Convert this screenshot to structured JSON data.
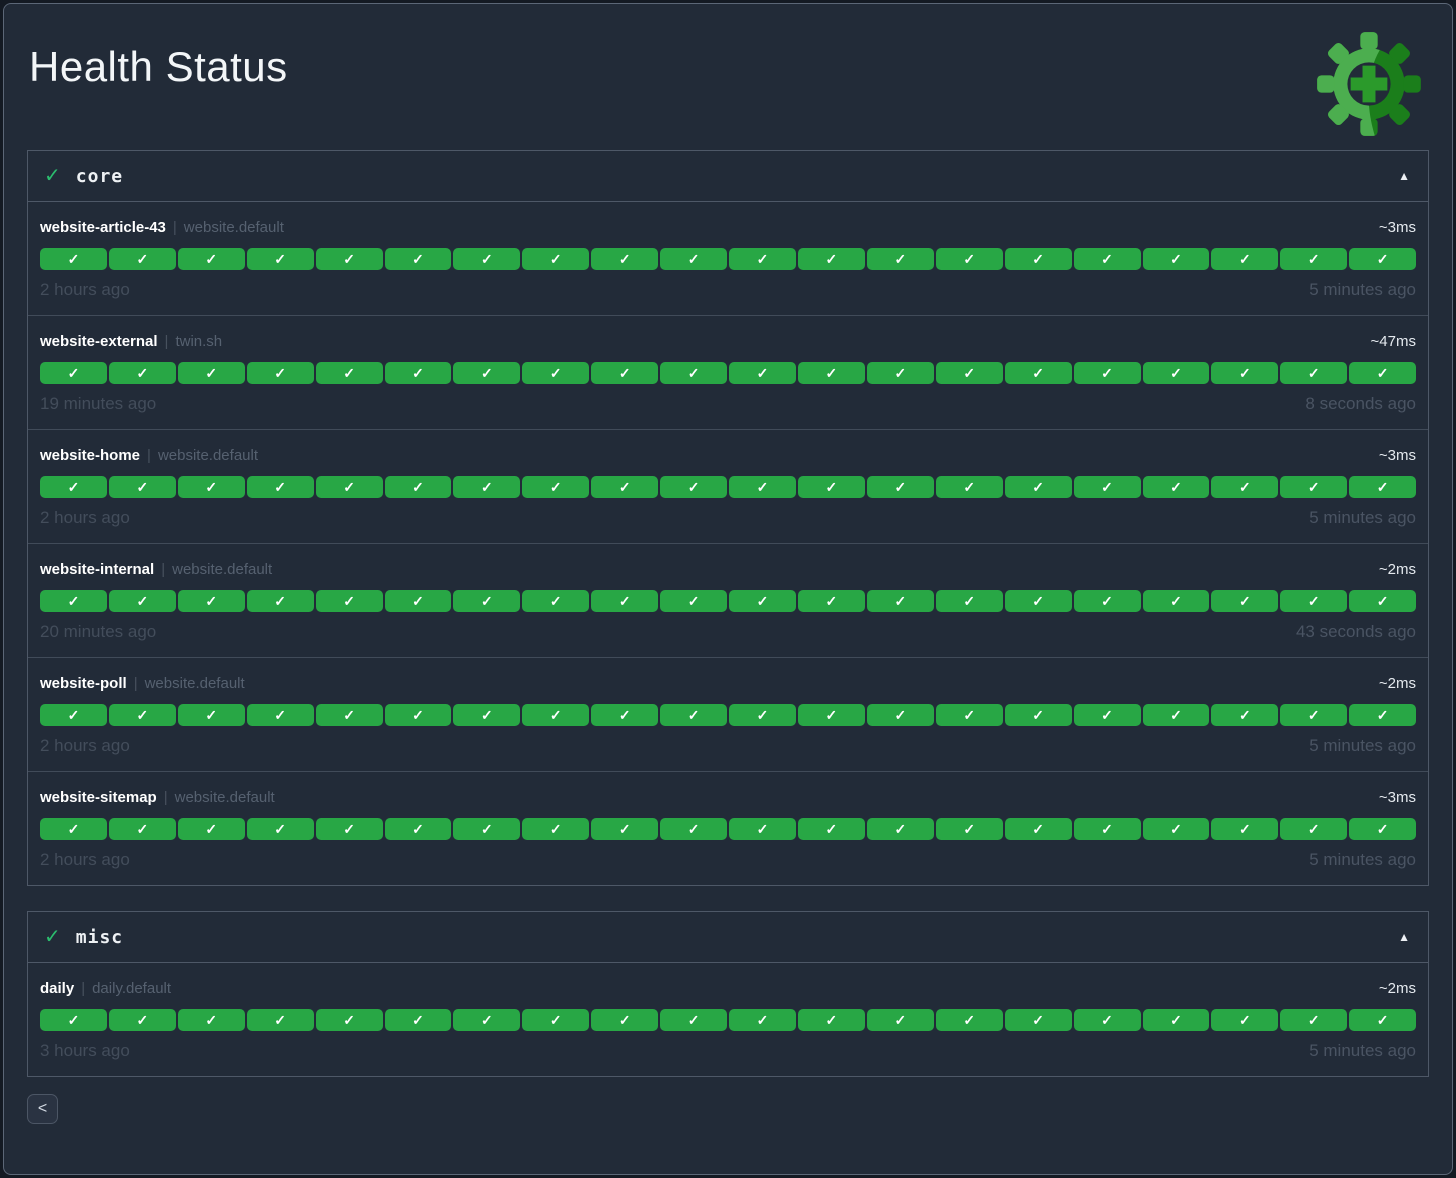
{
  "page": {
    "title": "Health Status"
  },
  "logo": {
    "name": "healthchecks-gear-plus-logo"
  },
  "separator": "|",
  "pill": {
    "check": "✓",
    "count": 20
  },
  "colors": {
    "success_pill": "#28a745",
    "section_check": "#2bbd6e",
    "logo_light_green": "#4cae4f",
    "logo_dark_green": "#1b7e1b",
    "logo_plus_green": "#2b9a2b",
    "background": "#222b38"
  },
  "sections": [
    {
      "name": "core",
      "status_icon": "✓",
      "collapse_icon": "▲",
      "checks": [
        {
          "name": "website-article-43",
          "group": "website.default",
          "latency": "~3ms",
          "first": "2 hours ago",
          "last": "5 minutes ago"
        },
        {
          "name": "website-external",
          "group": "twin.sh",
          "latency": "~47ms",
          "first": "19 minutes ago",
          "last": "8 seconds ago"
        },
        {
          "name": "website-home",
          "group": "website.default",
          "latency": "~3ms",
          "first": "2 hours ago",
          "last": "5 minutes ago"
        },
        {
          "name": "website-internal",
          "group": "website.default",
          "latency": "~2ms",
          "first": "20 minutes ago",
          "last": "43 seconds ago"
        },
        {
          "name": "website-poll",
          "group": "website.default",
          "latency": "~2ms",
          "first": "2 hours ago",
          "last": "5 minutes ago"
        },
        {
          "name": "website-sitemap",
          "group": "website.default",
          "latency": "~3ms",
          "first": "2 hours ago",
          "last": "5 minutes ago"
        }
      ]
    },
    {
      "name": "misc",
      "status_icon": "✓",
      "collapse_icon": "▲",
      "checks": [
        {
          "name": "daily",
          "group": "daily.default",
          "latency": "~2ms",
          "first": "3 hours ago",
          "last": "5 minutes ago"
        }
      ]
    }
  ],
  "footer": {
    "back_icon": "<"
  }
}
